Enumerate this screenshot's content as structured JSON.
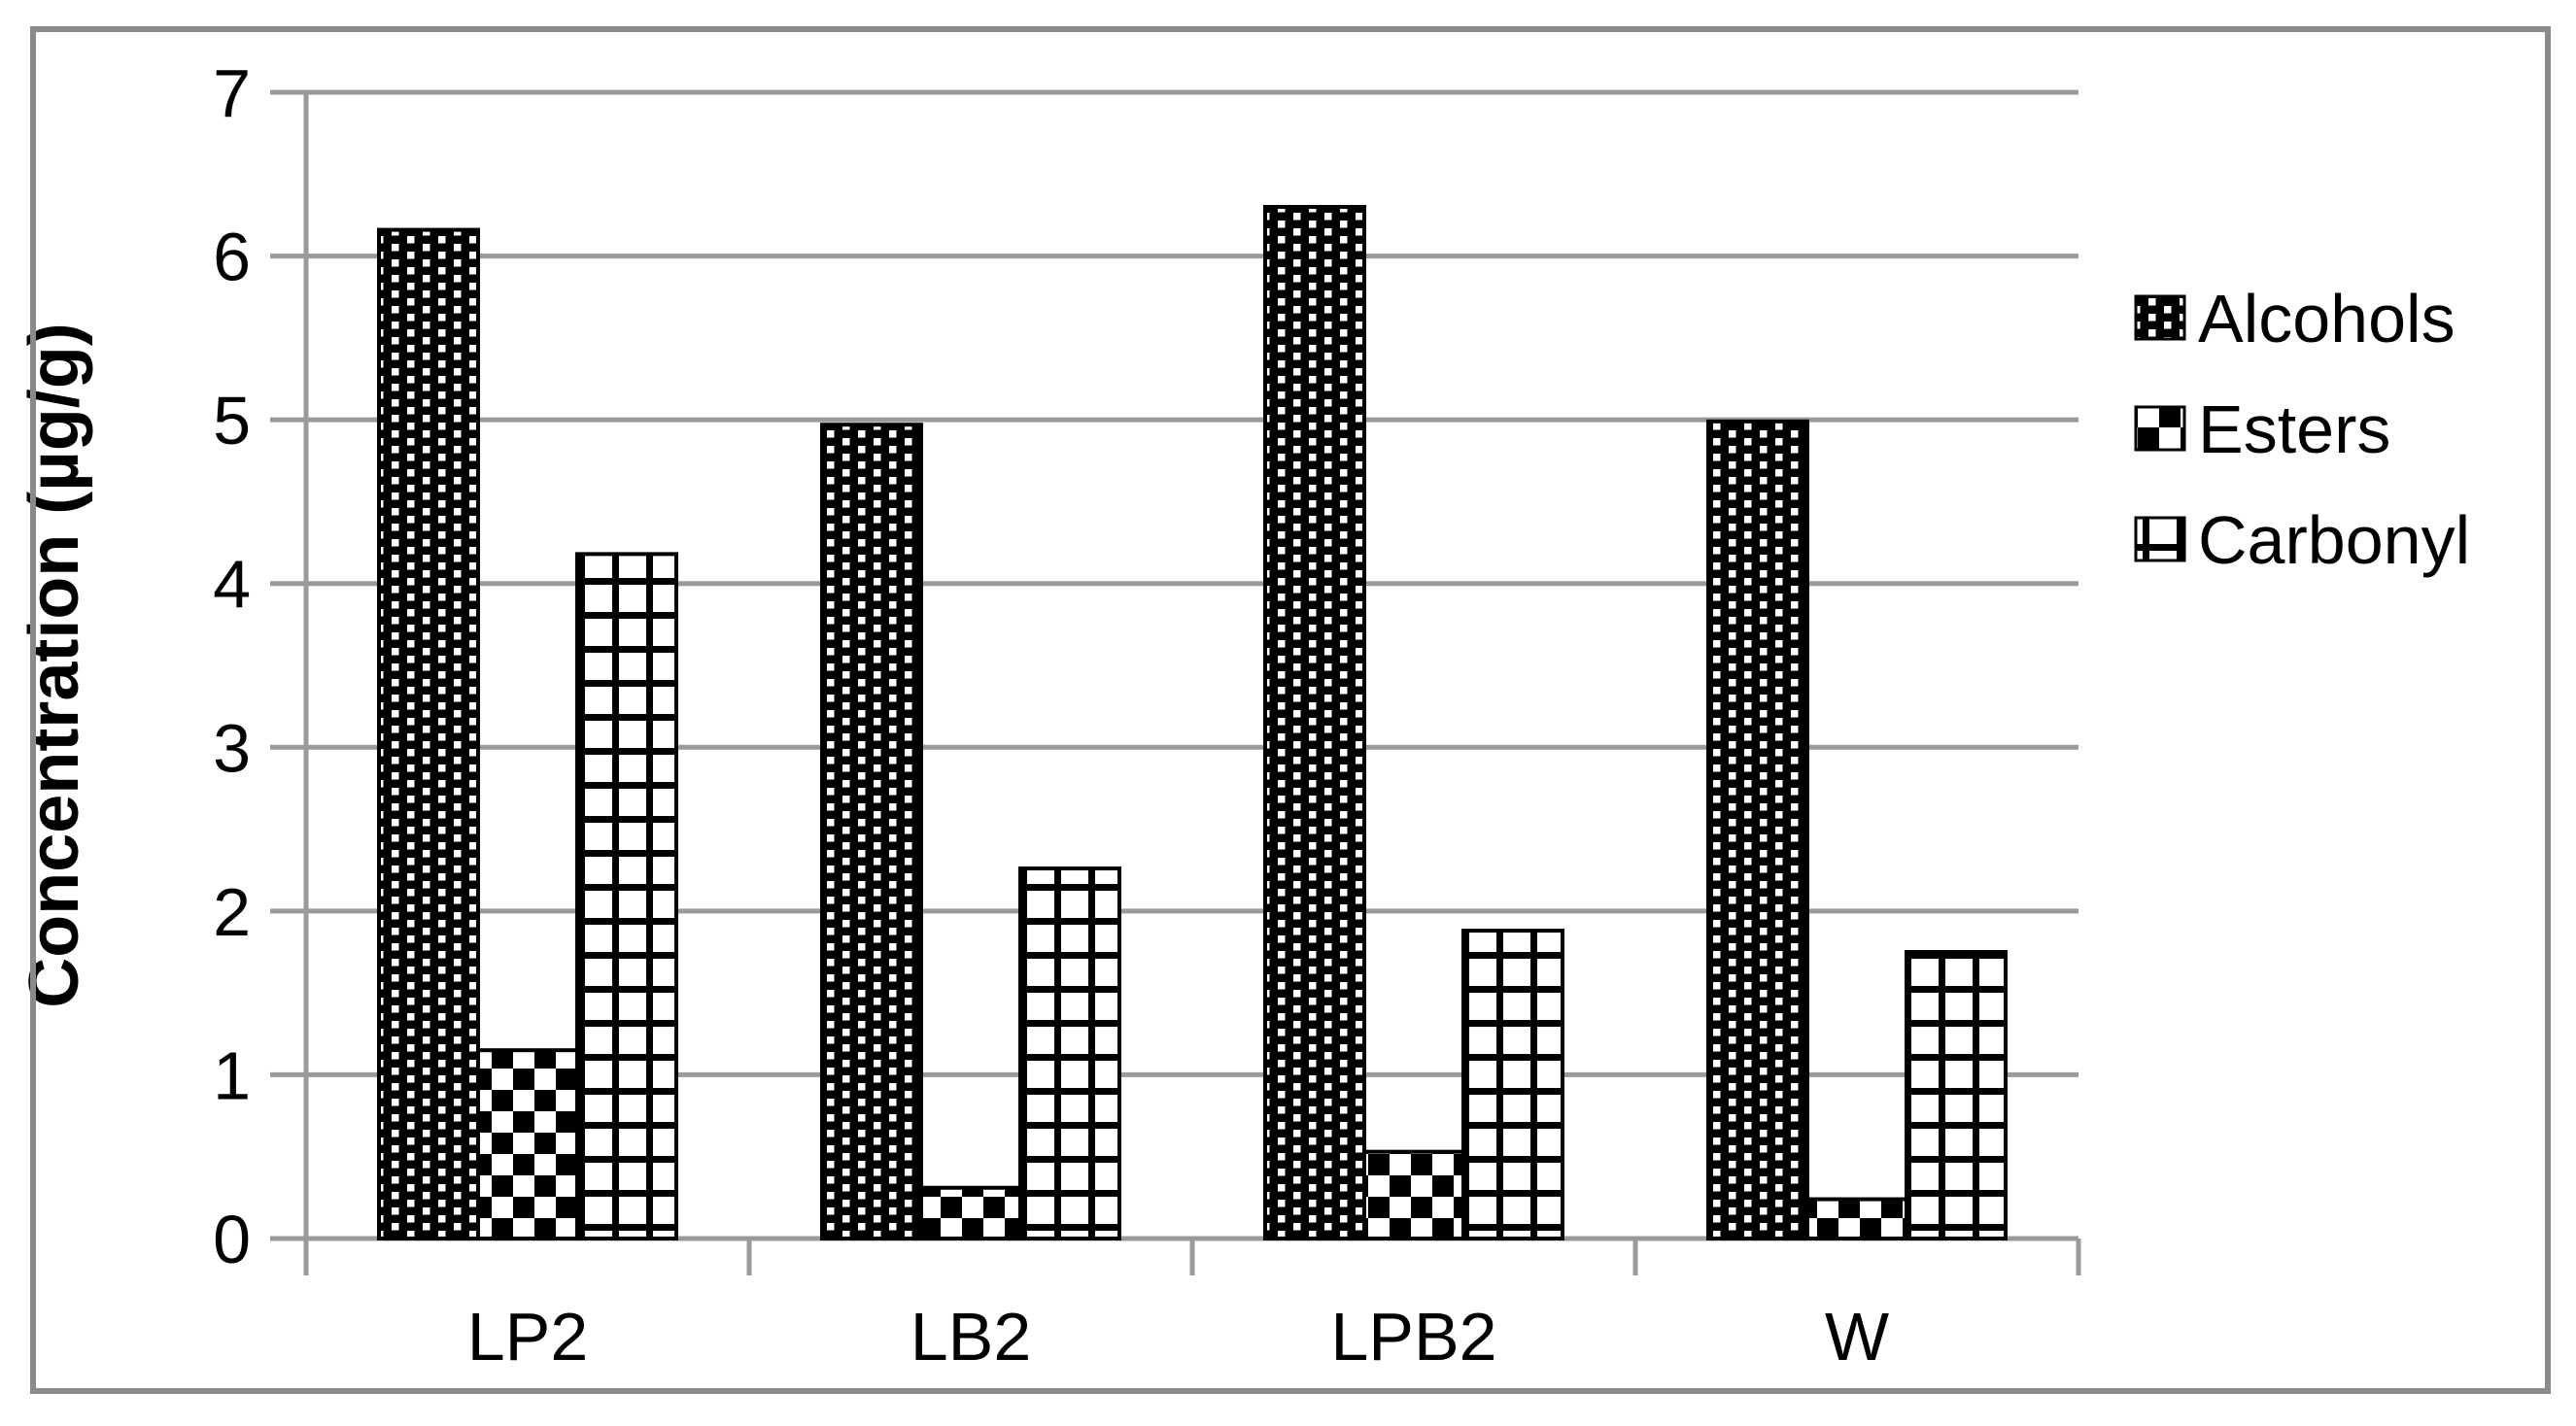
{
  "figure": {
    "background": "#ffffff",
    "frame_color": "#8a8a8a",
    "grid_color": "#9a9a9a",
    "bar_outline": "#000000"
  },
  "chart_data": {
    "type": "bar",
    "title": "",
    "categories": [
      "LP2",
      "LB2",
      "LPB2",
      "W"
    ],
    "series": [
      {
        "name": "Alcohols",
        "pattern": "dotted-dense",
        "values": [
          6.16,
          4.97,
          6.3,
          4.99
        ]
      },
      {
        "name": "Esters",
        "pattern": "checkerboard",
        "values": [
          1.15,
          0.31,
          0.53,
          0.24
        ]
      },
      {
        "name": "Carbonyl",
        "pattern": "open-grid",
        "values": [
          4.18,
          2.26,
          1.88,
          1.75
        ]
      }
    ],
    "xlabel": "",
    "ylabel": "Concentration (µg/g)",
    "ylim": [
      0,
      7
    ],
    "yticks": [
      "0",
      "1",
      "2",
      "3",
      "4",
      "5",
      "6",
      "7"
    ],
    "grid": "horizontal-only",
    "legend_position": "right-middle"
  }
}
